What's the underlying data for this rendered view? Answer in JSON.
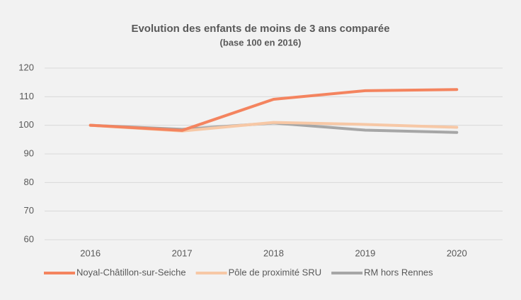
{
  "chart_data": {
    "type": "line",
    "title": "Evolution des enfants de moins de 3 ans comparée",
    "subtitle": "(base 100 en 2016)",
    "categories": [
      "2016",
      "2017",
      "2018",
      "2019",
      "2020"
    ],
    "series": [
      {
        "name": "Noyal-Châtillon-sur-Seiche",
        "color": "#f4845f",
        "values": [
          100,
          98.2,
          109.1,
          112.1,
          112.5
        ]
      },
      {
        "name": "Pôle de proximité SRU",
        "color": "#f7c8a6",
        "values": [
          100,
          98.0,
          101.0,
          100.3,
          99.3
        ]
      },
      {
        "name": "RM hors Rennes",
        "color": "#a6a6a6",
        "values": [
          100,
          98.6,
          100.8,
          98.3,
          97.5
        ]
      }
    ],
    "ylim": [
      60,
      120
    ],
    "yticks": [
      60,
      70,
      80,
      90,
      100,
      110,
      120
    ],
    "grid": true,
    "legend": "bottom"
  }
}
